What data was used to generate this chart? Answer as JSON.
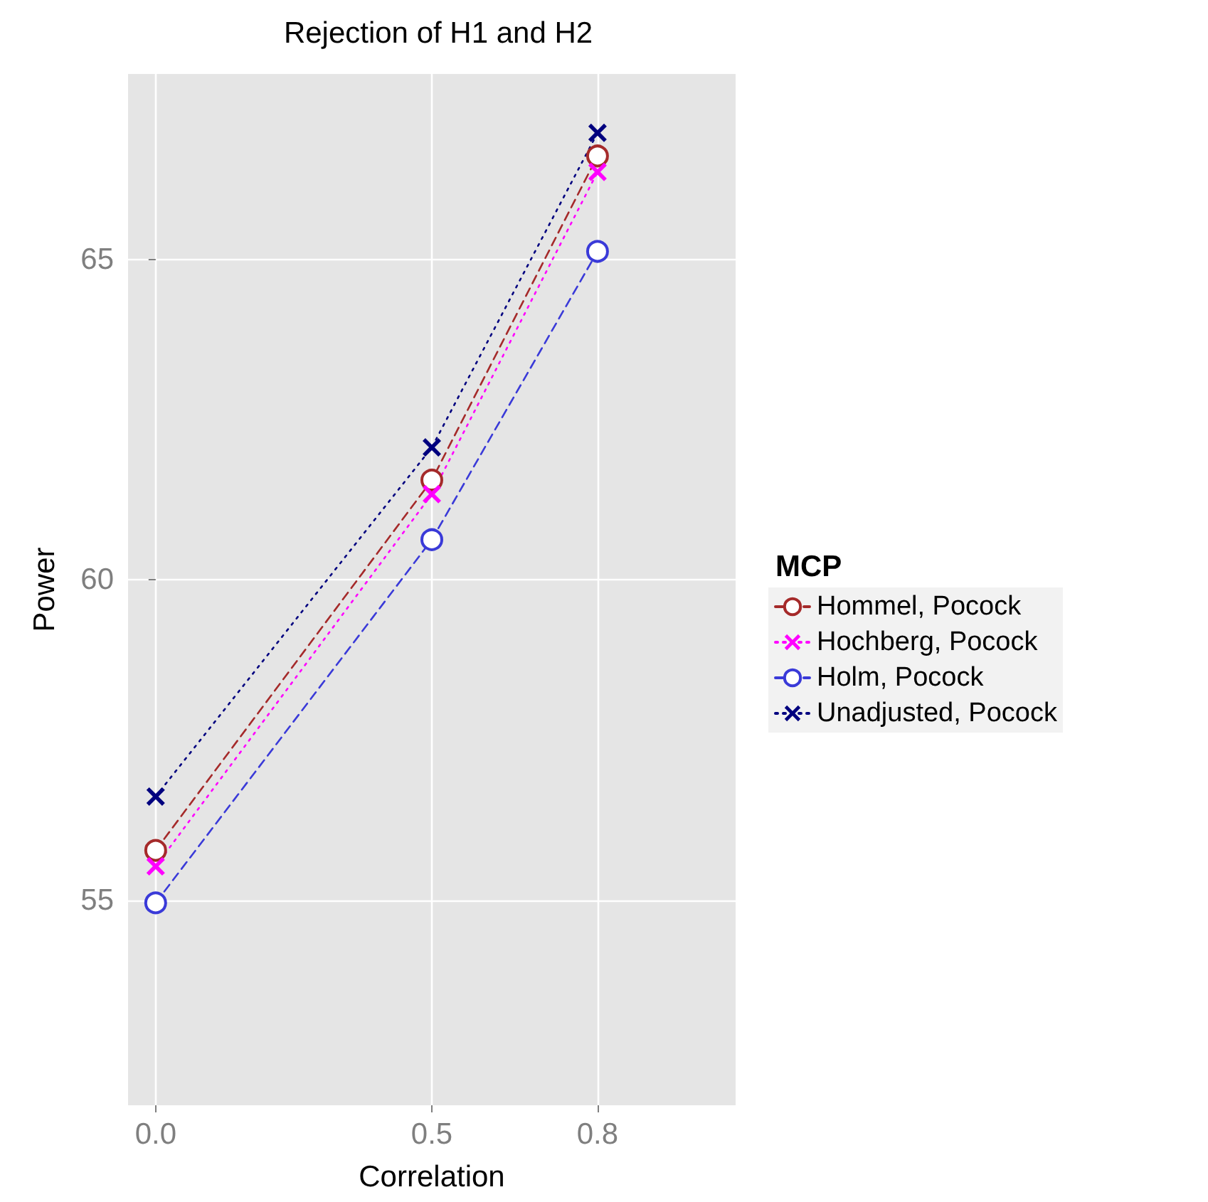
{
  "chart_data": {
    "type": "line",
    "title": "Rejection of H1 and H2",
    "xlabel": "Correlation",
    "ylabel": "Power",
    "legend_title": "MCP",
    "x": [
      0,
      0.5,
      0.8
    ],
    "series": [
      {
        "name": "Hommel, Pocock",
        "color": "#a52a2a",
        "marker": "circle",
        "line_style": "dashed",
        "values": [
          55.78,
          61.56,
          66.62
        ]
      },
      {
        "name": "Hochberg, Pocock",
        "color": "#ff00ff",
        "marker": "cross",
        "line_style": "dotted",
        "values": [
          55.53,
          61.34,
          66.37
        ]
      },
      {
        "name": "Holm, Pocock",
        "color": "#3a3ad8",
        "marker": "circle",
        "line_style": "dashed",
        "values": [
          54.96,
          60.63,
          65.13
        ]
      },
      {
        "name": "Unadjusted, Pocock",
        "color": "#00007f",
        "marker": "cross",
        "line_style": "dotted",
        "values": [
          56.62,
          62.07,
          66.98
        ]
      }
    ],
    "xlim": [
      -0.05,
      1.05
    ],
    "xticks": [
      {
        "value": 0,
        "label": "0.0"
      },
      0.5,
      0.8
    ],
    "ylim": [
      51.8,
      67.9
    ],
    "yticks": [
      55,
      60,
      65
    ],
    "grid": true,
    "legend": "right"
  }
}
